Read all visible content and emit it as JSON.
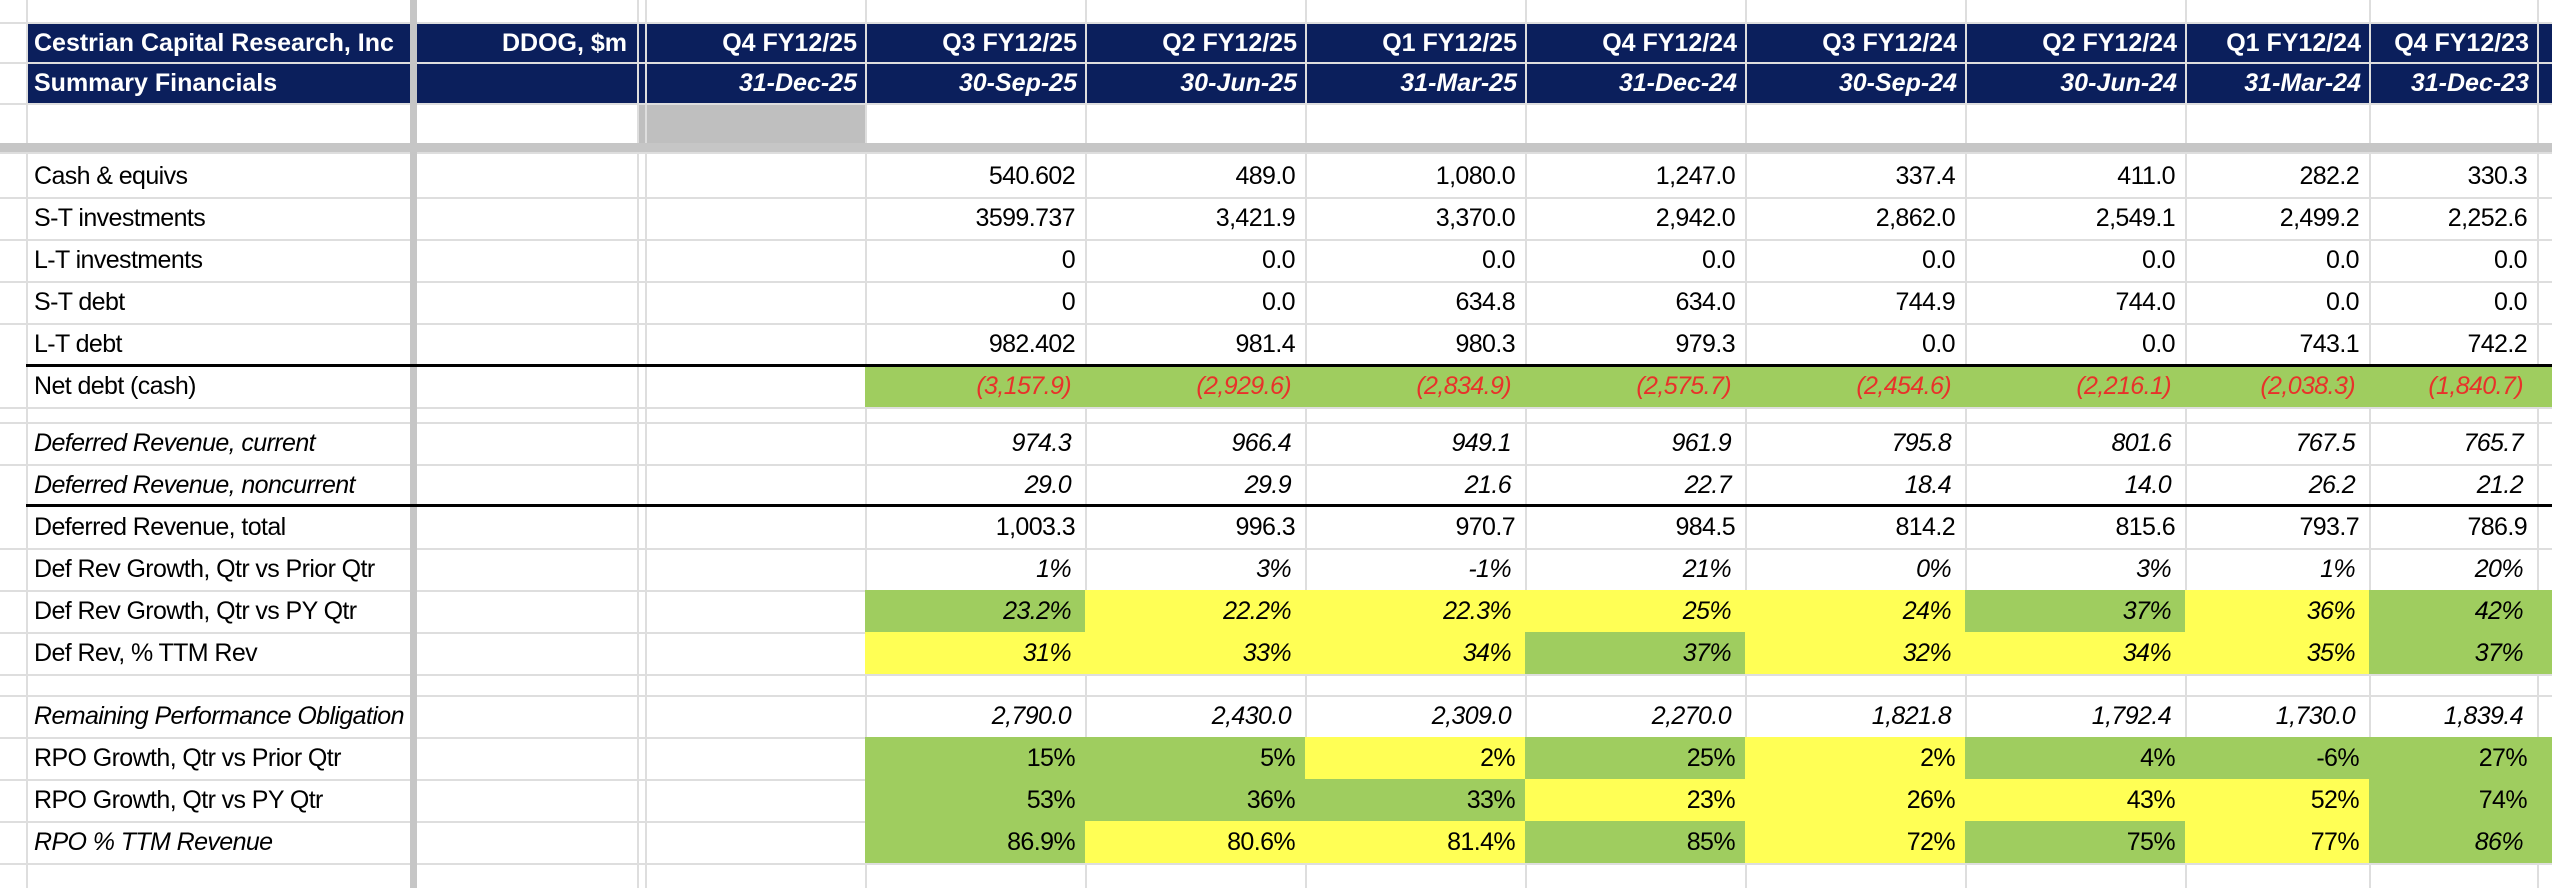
{
  "header": {
    "company": "Cestrian Capital Research, Inc",
    "subtitle": "Summary Financials",
    "ticker_units": "DDOG, $m",
    "periods": [
      {
        "quarter": "Q4 FY12/25",
        "date": "31-Dec-25"
      },
      {
        "quarter": "Q3 FY12/25",
        "date": "30-Sep-25"
      },
      {
        "quarter": "Q2 FY12/25",
        "date": "30-Jun-25"
      },
      {
        "quarter": "Q1 FY12/25",
        "date": "31-Mar-25"
      },
      {
        "quarter": "Q4 FY12/24",
        "date": "31-Dec-24"
      },
      {
        "quarter": "Q3 FY12/24",
        "date": "30-Sep-24"
      },
      {
        "quarter": "Q2 FY12/24",
        "date": "30-Jun-24"
      },
      {
        "quarter": "Q1 FY12/24",
        "date": "31-Mar-24"
      },
      {
        "quarter": "Q4 FY12/23",
        "date": "31-Dec-23"
      }
    ]
  },
  "colors": {
    "header_bg": "#0b1f5c",
    "green_fill": "#9fcd5f",
    "yellow_fill": "#ffff55",
    "negative_red": "#e8322a",
    "selection_grey": "#bfbfbf"
  },
  "rows": [
    {
      "label": "Cash & equivs",
      "italic": false,
      "values": [
        "",
        "540.602",
        "489.0",
        "1,080.0",
        "1,247.0",
        "337.4",
        "411.0",
        "282.2",
        "330.3"
      ]
    },
    {
      "label": "S-T investments",
      "italic": false,
      "values": [
        "",
        "3599.737",
        "3,421.9",
        "3,370.0",
        "2,942.0",
        "2,862.0",
        "2,549.1",
        "2,499.2",
        "2,252.6"
      ]
    },
    {
      "label": "L-T investments",
      "italic": false,
      "values": [
        "",
        "0",
        "0.0",
        "0.0",
        "0.0",
        "0.0",
        "0.0",
        "0.0",
        "0.0"
      ]
    },
    {
      "label": "S-T debt",
      "italic": false,
      "values": [
        "",
        "0",
        "0.0",
        "634.8",
        "634.0",
        "744.9",
        "744.0",
        "0.0",
        "0.0"
      ]
    },
    {
      "label": "L-T debt",
      "italic": false,
      "values": [
        "",
        "982.402",
        "981.4",
        "980.3",
        "979.3",
        "0.0",
        "0.0",
        "743.1",
        "742.2"
      ]
    },
    {
      "label": "Net debt (cash)",
      "italic": false,
      "values_italic": true,
      "values_red": true,
      "values": [
        "",
        "(3,157.9)",
        "(2,929.6)",
        "(2,834.9)",
        "(2,575.7)",
        "(2,454.6)",
        "(2,216.1)",
        "(2,038.3)",
        "(1,840.7)"
      ],
      "fills": [
        "",
        "green",
        "green",
        "green",
        "green",
        "green",
        "green",
        "green",
        "green"
      ]
    },
    {
      "label": "Deferred Revenue, current",
      "italic": true,
      "values_italic": true,
      "values": [
        "",
        "974.3",
        "966.4",
        "949.1",
        "961.9",
        "795.8",
        "801.6",
        "767.5",
        "765.7"
      ]
    },
    {
      "label": "Deferred Revenue, noncurrent",
      "italic": true,
      "values_italic": true,
      "values": [
        "",
        "29.0",
        "29.9",
        "21.6",
        "22.7",
        "18.4",
        "14.0",
        "26.2",
        "21.2"
      ]
    },
    {
      "label": "Deferred Revenue, total",
      "italic": false,
      "values": [
        "",
        "1,003.3",
        "996.3",
        "970.7",
        "984.5",
        "814.2",
        "815.6",
        "793.7",
        "786.9"
      ]
    },
    {
      "label": "Def Rev Growth, Qtr vs Prior Qtr",
      "italic": false,
      "values_italic": true,
      "values": [
        "",
        "1%",
        "3%",
        "-1%",
        "21%",
        "0%",
        "3%",
        "1%",
        "20%"
      ]
    },
    {
      "label": "Def Rev Growth, Qtr vs PY Qtr",
      "italic": false,
      "values_italic": true,
      "values": [
        "",
        "23.2%",
        "22.2%",
        "22.3%",
        "25%",
        "24%",
        "37%",
        "36%",
        "42%"
      ],
      "fills": [
        "",
        "green",
        "yellow",
        "yellow",
        "yellow",
        "yellow",
        "green",
        "yellow",
        "green"
      ]
    },
    {
      "label": "Def Rev, % TTM Rev",
      "italic": false,
      "values_italic": true,
      "values": [
        "",
        "31%",
        "33%",
        "34%",
        "37%",
        "32%",
        "34%",
        "35%",
        "37%"
      ],
      "fills": [
        "",
        "yellow",
        "yellow",
        "yellow",
        "green",
        "yellow",
        "yellow",
        "yellow",
        "green"
      ]
    },
    {
      "label": "Remaining Performance Obligation",
      "italic": true,
      "values_italic": true,
      "values": [
        "",
        "2,790.0",
        "2,430.0",
        "2,309.0",
        "2,270.0",
        "1,821.8",
        "1,792.4",
        "1,730.0",
        "1,839.4"
      ]
    },
    {
      "label": "RPO Growth, Qtr vs Prior Qtr",
      "italic": false,
      "values": [
        "",
        "15%",
        "5%",
        "2%",
        "25%",
        "2%",
        "4%",
        "-6%",
        "27%"
      ],
      "fills": [
        "",
        "green",
        "green",
        "yellow",
        "green",
        "yellow",
        "green",
        "green",
        "green"
      ]
    },
    {
      "label": "RPO Growth, Qtr vs PY Qtr",
      "italic": false,
      "values": [
        "",
        "53%",
        "36%",
        "33%",
        "23%",
        "26%",
        "43%",
        "52%",
        "74%"
      ],
      "fills": [
        "",
        "green",
        "green",
        "green",
        "yellow",
        "yellow",
        "yellow",
        "yellow",
        "green"
      ]
    },
    {
      "label": "RPO % TTM Revenue",
      "italic": true,
      "values": [
        "",
        "86.9%",
        "80.6%",
        "81.4%",
        "85%",
        "72%",
        "75%",
        "77%",
        "86%"
      ],
      "italic_cells": [
        false,
        false,
        false,
        false,
        false,
        false,
        false,
        false,
        true
      ],
      "fills": [
        "",
        "green",
        "yellow",
        "yellow",
        "green",
        "yellow",
        "green",
        "yellow",
        "green"
      ]
    }
  ]
}
